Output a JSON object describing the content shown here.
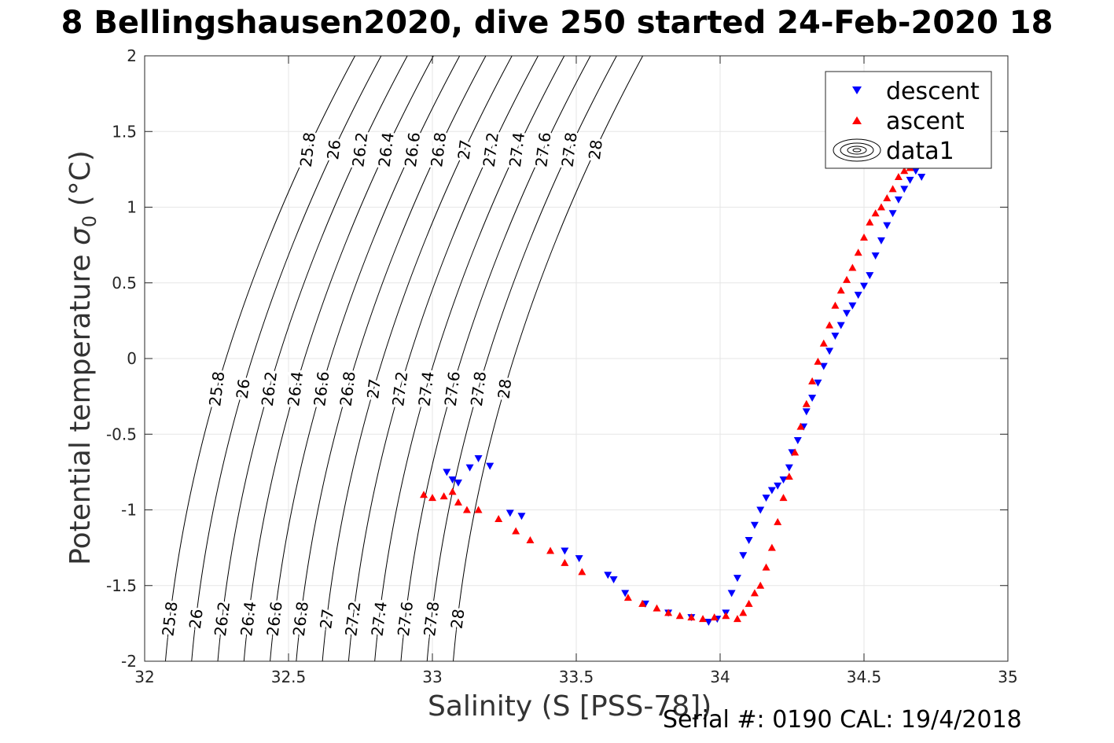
{
  "chart_data": {
    "type": "scatter",
    "title": "8 Bellingshausen2020, dive 250 started 24-Feb-2020 18",
    "xlabel": "Salinity (S [PSS-78])",
    "ylabel_main": "Potential temperature ",
    "ylabel_sigma": "σ",
    "ylabel_sub": "0",
    "ylabel_unit": " (°C)",
    "footer": "Serial #: 0190  CAL: 19/4/2018",
    "xlim": [
      32,
      35
    ],
    "ylim": [
      -2,
      2
    ],
    "x_ticks": [
      "32",
      "32.5",
      "33",
      "33.5",
      "34",
      "34.5",
      "35"
    ],
    "y_ticks": [
      "2",
      "1.5",
      "1",
      "0.5",
      "0",
      "-0.5",
      "-1",
      "-1.5",
      "-2"
    ],
    "grid": true,
    "legend_position": "top-right",
    "legend": [
      "descent",
      "ascent",
      "data1"
    ],
    "colors": {
      "descent": "#0000ff",
      "ascent": "#ff0000",
      "contour": "#000000",
      "grid": "#e6e6e6"
    },
    "contour_levels": [
      "25.8",
      "26",
      "26.2",
      "26.4",
      "26.6",
      "26.8",
      "27",
      "27.2",
      "27.4",
      "27.6",
      "27.8",
      "28"
    ],
    "series": [
      {
        "name": "descent",
        "marker": "triangle-down",
        "x": [
          33.05,
          33.07,
          33.09,
          33.13,
          33.16,
          33.2,
          33.27,
          33.31,
          33.46,
          33.51,
          33.61,
          33.63,
          33.67,
          33.74,
          33.82,
          33.9,
          33.96,
          33.99,
          34.02,
          34.04,
          34.06,
          34.08,
          34.1,
          34.12,
          34.14,
          34.16,
          34.18,
          34.2,
          34.22,
          34.24,
          34.25,
          34.27,
          34.29,
          34.3,
          34.32,
          34.34,
          34.36,
          34.38,
          34.4,
          34.42,
          34.44,
          34.46,
          34.48,
          34.5,
          34.52,
          34.54,
          34.56,
          34.58,
          34.6,
          34.62,
          34.64,
          34.66,
          34.68,
          34.7
        ],
        "y": [
          -0.75,
          -0.8,
          -0.82,
          -0.72,
          -0.66,
          -0.71,
          -1.02,
          -1.04,
          -1.27,
          -1.32,
          -1.43,
          -1.46,
          -1.55,
          -1.62,
          -1.68,
          -1.71,
          -1.74,
          -1.72,
          -1.68,
          -1.55,
          -1.45,
          -1.3,
          -1.2,
          -1.1,
          -1.0,
          -0.92,
          -0.87,
          -0.84,
          -0.8,
          -0.72,
          -0.62,
          -0.54,
          -0.45,
          -0.35,
          -0.26,
          -0.16,
          -0.05,
          0.05,
          0.15,
          0.22,
          0.3,
          0.35,
          0.42,
          0.48,
          0.55,
          0.68,
          0.78,
          0.88,
          0.96,
          1.05,
          1.12,
          1.18,
          1.24,
          1.2
        ]
      },
      {
        "name": "ascent",
        "marker": "triangle-up",
        "x": [
          32.97,
          33.0,
          33.04,
          33.07,
          33.09,
          33.12,
          33.16,
          33.23,
          33.29,
          33.34,
          33.41,
          33.46,
          33.52,
          33.68,
          33.73,
          33.78,
          33.82,
          33.86,
          33.9,
          33.94,
          33.98,
          34.02,
          34.06,
          34.08,
          34.1,
          34.12,
          34.14,
          34.16,
          34.18,
          34.2,
          34.22,
          34.24,
          34.26,
          34.28,
          34.3,
          34.32,
          34.34,
          34.36,
          34.38,
          34.4,
          34.42,
          34.44,
          34.46,
          34.48,
          34.5,
          34.52,
          34.54,
          34.56,
          34.58,
          34.6,
          34.62,
          34.64,
          34.66,
          34.68
        ],
        "y": [
          -0.9,
          -0.92,
          -0.91,
          -0.88,
          -0.95,
          -1.0,
          -1.0,
          -1.06,
          -1.14,
          -1.2,
          -1.27,
          -1.35,
          -1.41,
          -1.58,
          -1.62,
          -1.65,
          -1.68,
          -1.7,
          -1.71,
          -1.72,
          -1.71,
          -1.7,
          -1.72,
          -1.68,
          -1.62,
          -1.55,
          -1.5,
          -1.38,
          -1.25,
          -1.08,
          -0.92,
          -0.78,
          -0.62,
          -0.45,
          -0.3,
          -0.15,
          -0.02,
          0.1,
          0.22,
          0.35,
          0.45,
          0.52,
          0.6,
          0.7,
          0.8,
          0.9,
          0.96,
          1.0,
          1.06,
          1.12,
          1.2,
          1.24,
          1.26,
          1.28
        ]
      }
    ]
  }
}
